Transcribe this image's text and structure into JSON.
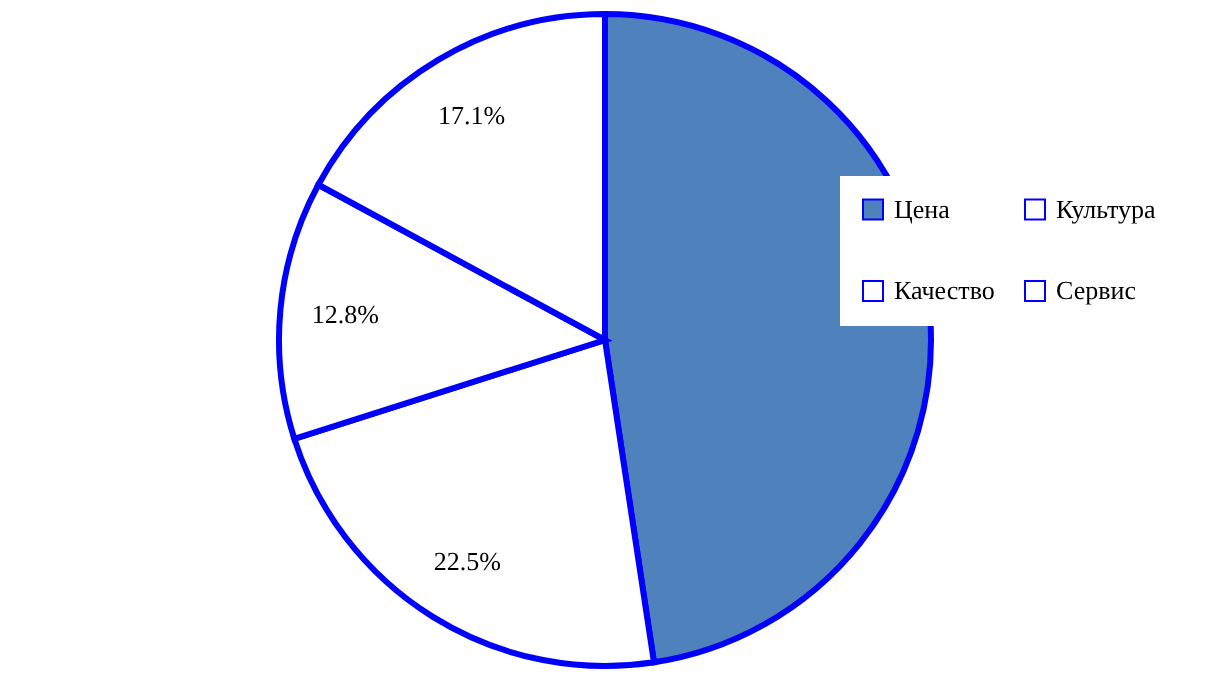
{
  "chart_data": {
    "type": "pie",
    "categories": [
      "Цена",
      "Качество",
      "Культура",
      "Сервис"
    ],
    "values": [
      47.6,
      22.5,
      12.8,
      17.1
    ],
    "value_labels": [
      null,
      "22.5%",
      "12.8%",
      "17.1%"
    ],
    "colors": [
      "#4f81bd",
      "#ffffff",
      "#ffffff",
      "#ffffff"
    ],
    "legend": "right"
  }
}
